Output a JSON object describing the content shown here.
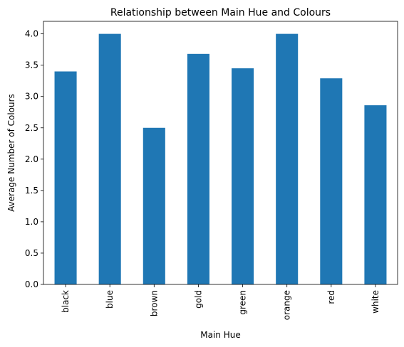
{
  "chart_data": {
    "type": "bar",
    "title": "Relationship between Main Hue and Colours",
    "xlabel": "Main Hue",
    "ylabel": "Average Number of Colours",
    "categories": [
      "black",
      "blue",
      "brown",
      "gold",
      "green",
      "orange",
      "red",
      "white"
    ],
    "values": [
      3.4,
      4.0,
      2.5,
      3.68,
      3.45,
      4.0,
      3.29,
      2.86
    ],
    "ylim": [
      0,
      4.2
    ],
    "yticks": [
      "0.0",
      "0.5",
      "1.0",
      "1.5",
      "2.0",
      "2.5",
      "3.0",
      "3.5",
      "4.0"
    ],
    "grid": false,
    "legend": "none",
    "bar_color": "#1f77b4"
  }
}
